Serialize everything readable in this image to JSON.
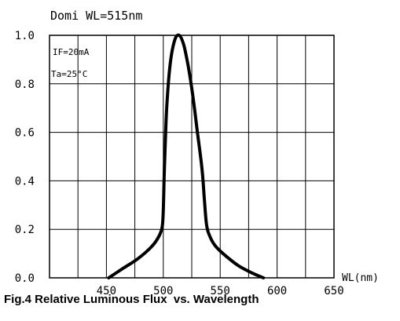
{
  "chart_data": {
    "type": "line",
    "title": "Domi  WL=515nm",
    "xlabel": "WL(nm)",
    "ylabel": "",
    "caption": "Fig.4 Relative Luminous Flux  vs. Wavelength",
    "annotations": [
      "IF=20mA",
      "Ta=25°C"
    ],
    "xlim": [
      400,
      650
    ],
    "ylim": [
      0,
      1.0
    ],
    "xticks": [
      450,
      500,
      550,
      600,
      650
    ],
    "yticks": [
      "0.0",
      "0.2",
      "0.4",
      "0.6",
      "0.8",
      "1.0"
    ],
    "ytick_values": [
      0,
      0.2,
      0.4,
      0.6,
      0.8,
      1.0
    ],
    "grid": true,
    "series": [
      {
        "x": [
          452,
          465,
          478,
          490,
          496,
          499,
          500,
          501,
          503,
          506,
          510,
          514,
          518,
          522,
          526,
          530,
          534,
          536,
          538,
          541,
          546,
          555,
          566,
          578,
          588
        ],
        "y": [
          0.0,
          0.04,
          0.08,
          0.13,
          0.17,
          0.21,
          0.28,
          0.45,
          0.7,
          0.88,
          0.98,
          1.0,
          0.96,
          0.87,
          0.75,
          0.6,
          0.45,
          0.33,
          0.22,
          0.17,
          0.13,
          0.09,
          0.05,
          0.02,
          0.0
        ]
      }
    ]
  }
}
